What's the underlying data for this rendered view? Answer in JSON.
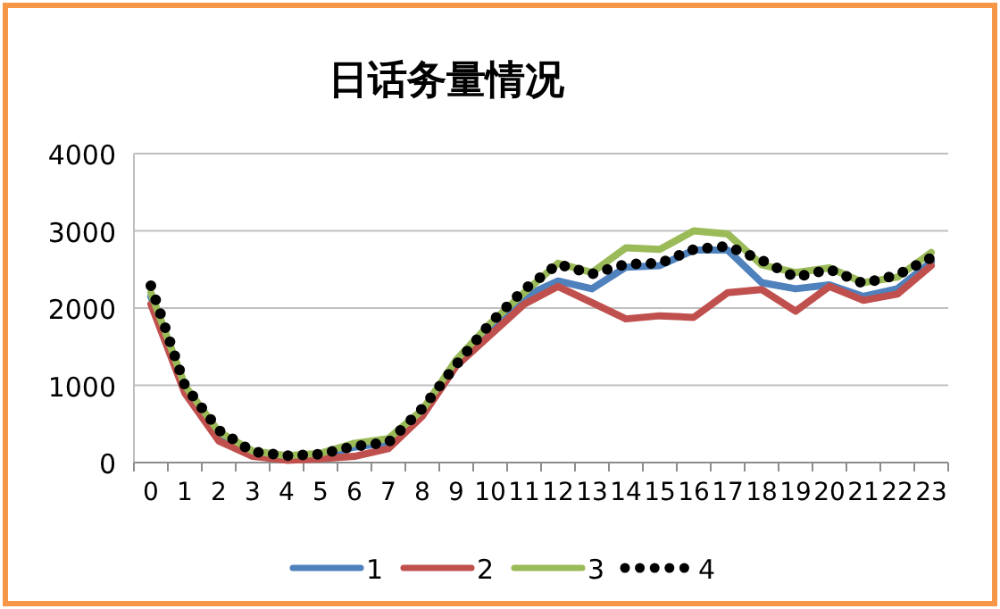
{
  "chart_data": {
    "type": "line",
    "title": "日话务量情况",
    "categories": [
      "0",
      "1",
      "2",
      "3",
      "4",
      "5",
      "6",
      "7",
      "8",
      "9",
      "10",
      "11",
      "12",
      "13",
      "14",
      "15",
      "16",
      "17",
      "18",
      "19",
      "20",
      "21",
      "22",
      "23"
    ],
    "series": [
      {
        "name": "1",
        "color": "#4f81bd",
        "line_style": "solid",
        "values": [
          2150,
          950,
          350,
          130,
          70,
          90,
          200,
          260,
          650,
          1300,
          1750,
          2150,
          2350,
          2250,
          2530,
          2550,
          2750,
          2750,
          2330,
          2250,
          2300,
          2150,
          2250,
          2600
        ]
      },
      {
        "name": "2",
        "color": "#c0504d",
        "line_style": "solid",
        "values": [
          2050,
          900,
          280,
          80,
          30,
          50,
          80,
          180,
          600,
          1250,
          1650,
          2050,
          2280,
          2070,
          1860,
          1900,
          1880,
          2200,
          2240,
          1960,
          2280,
          2100,
          2180,
          2550
        ]
      },
      {
        "name": "3",
        "color": "#9bbb59",
        "line_style": "solid",
        "values": [
          2200,
          1000,
          400,
          150,
          90,
          120,
          250,
          310,
          680,
          1330,
          1800,
          2200,
          2580,
          2460,
          2780,
          2760,
          3000,
          2960,
          2560,
          2460,
          2520,
          2330,
          2400,
          2720
        ]
      },
      {
        "name": "4",
        "color": "#000000",
        "line_style": "dotted",
        "values": [
          2290,
          1000,
          420,
          140,
          90,
          110,
          210,
          260,
          700,
          1270,
          1800,
          2240,
          2570,
          2440,
          2570,
          2580,
          2760,
          2800,
          2620,
          2400,
          2500,
          2320,
          2430,
          2650
        ]
      }
    ],
    "ylim": [
      0,
      4000
    ],
    "yticks": [
      0,
      1000,
      2000,
      3000,
      4000
    ],
    "grid": "y",
    "legend": "bottom"
  }
}
